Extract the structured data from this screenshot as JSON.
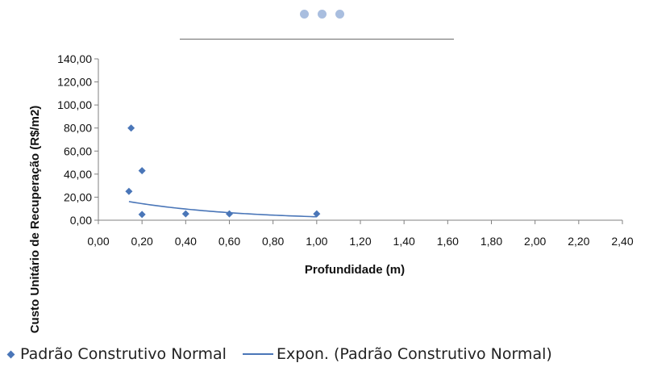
{
  "colors": {
    "series": "#4a76b8",
    "dots": "#a9bedf",
    "divider": "#6b6b6b",
    "axis": "#808080"
  },
  "chart_data": {
    "type": "scatter",
    "xlabel": "Profundidade (m)",
    "ylabel": "Custo Unitário de Recuperação (R$/m2)",
    "xlim": [
      0,
      2.4
    ],
    "ylim": [
      0,
      140
    ],
    "x_ticks": [
      "0,00",
      "0,20",
      "0,40",
      "0,60",
      "0,80",
      "1,00",
      "1,20",
      "1,40",
      "1,60",
      "1,80",
      "2,00",
      "2,20",
      "2,40"
    ],
    "y_ticks": [
      "0,00",
      "20,00",
      "40,00",
      "60,00",
      "80,00",
      "100,00",
      "120,00",
      "140,00"
    ],
    "series": [
      {
        "name": "Padrão Construtivo Normal",
        "marker": "diamond",
        "x": [
          0.15,
          0.14,
          0.2,
          0.2,
          0.4,
          0.6,
          1.0
        ],
        "y": [
          80,
          25,
          43,
          5,
          5.5,
          5.5,
          5.5
        ]
      }
    ],
    "trendline": {
      "name": "Expon. (Padrão Construtivo Normal)",
      "type": "exponential",
      "x_range": [
        0.14,
        1.0
      ],
      "a": 21.32,
      "b": -1.971
    },
    "legend_position": "bottom",
    "grid": false
  }
}
